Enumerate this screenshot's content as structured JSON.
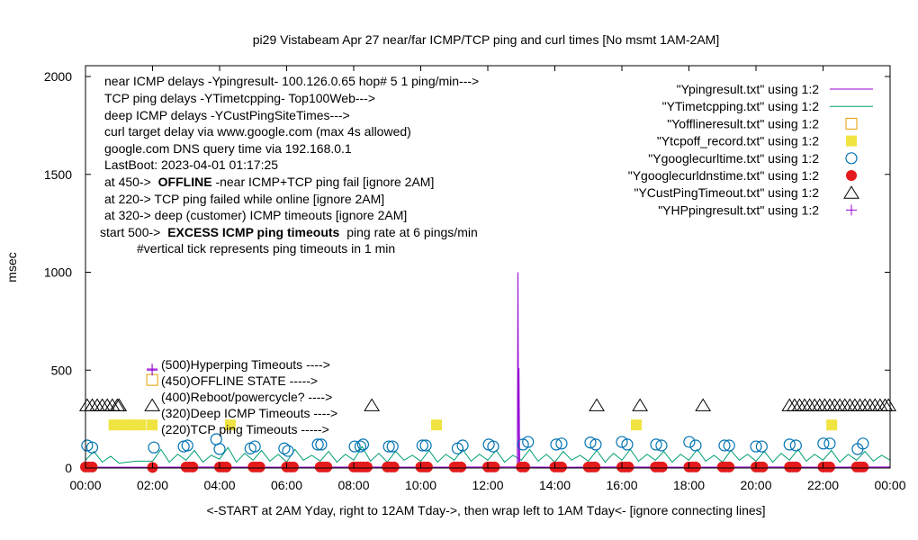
{
  "chart_data": {
    "type": "line",
    "title": "pi29 Vistabeam Apr 27  near/far ICMP/TCP ping and curl times [No msmt 1AM-2AM]",
    "xlabel": "<-START at 2AM Yday, right to 12AM Tday->, then wrap left to 1AM Tday<- [ignore connecting lines]",
    "ylabel": "msec",
    "xlim": [
      0,
      24
    ],
    "ylim": [
      0,
      2000
    ],
    "xticks": [
      "00:00",
      "02:00",
      "04:00",
      "06:00",
      "08:00",
      "10:00",
      "12:00",
      "14:00",
      "16:00",
      "18:00",
      "20:00",
      "22:00",
      "00:00"
    ],
    "yticks": [
      "0",
      "500",
      "1000",
      "1500",
      "2000"
    ],
    "annotations": [
      "near ICMP delays -Ypingresult- 100.126.0.65 hop# 5 1 ping/min--->",
      "TCP ping delays -YTimetcpping- Top100Web--->",
      "deep ICMP delays -YCustPingSiteTimes--->",
      "curl target delay via www.google.com (max 4s allowed)",
      "google.com DNS query time via 192.168.0.1",
      "LastBoot: 2023-04-01 01:17:25"
    ],
    "offline_note": {
      "pre": "at 450->",
      "bold": "OFFLINE",
      "post": "-near ICMP+TCP ping fail [ignore 2AM]"
    },
    "notes": [
      "at 220-> TCP ping failed while online [ignore 2AM]",
      "at 320-> deep (customer) ICMP timeouts [ignore 2AM]"
    ],
    "excess_note": {
      "pre": "start 500->",
      "bold": "EXCESS ICMP ping timeouts",
      "post": "ping rate at 6 pings/min"
    },
    "tick_note": "#vertical tick represents ping timeouts in 1 min",
    "key_labels": [
      "(500)Hyperping Timeouts ---->",
      "(450)OFFLINE STATE ----->",
      "(400)Reboot/powercycle? ---->",
      "(320)Deep ICMP Timeouts ---->",
      "(220)TCP ping Timeouts ----->"
    ],
    "legend_position": "top-right",
    "series": [
      {
        "name": "\"Ypingresult.txt\" using 1:2",
        "style": "line",
        "color": "#9400d3",
        "points": [
          [
            0,
            4
          ],
          [
            2,
            4
          ],
          [
            4,
            5
          ],
          [
            6,
            4
          ],
          [
            8,
            5
          ],
          [
            10,
            4
          ],
          [
            12,
            5
          ],
          [
            12.88,
            5
          ],
          [
            12.9,
            1000
          ],
          [
            12.92,
            5
          ],
          [
            12.93,
            510
          ],
          [
            12.95,
            5
          ],
          [
            14,
            4
          ],
          [
            16,
            5
          ],
          [
            18,
            4
          ],
          [
            20,
            5
          ],
          [
            22,
            4
          ],
          [
            24,
            5
          ]
        ]
      },
      {
        "name": "\"YTimetcpping.txt\" using 1:2",
        "style": "line",
        "color": "#009e73",
        "points": [
          [
            0,
            40
          ],
          [
            0.25,
            85
          ],
          [
            0.5,
            30
          ],
          [
            0.75,
            60
          ],
          [
            1,
            25
          ],
          [
            1.5,
            35
          ],
          [
            2,
            35
          ],
          [
            2.25,
            95
          ],
          [
            2.5,
            30
          ],
          [
            2.75,
            70
          ],
          [
            3,
            40
          ],
          [
            3.25,
            90
          ],
          [
            3.5,
            30
          ],
          [
            3.75,
            65
          ],
          [
            4,
            45
          ],
          [
            4.25,
            105
          ],
          [
            4.5,
            30
          ],
          [
            4.75,
            75
          ],
          [
            5,
            40
          ],
          [
            5.25,
            90
          ],
          [
            5.5,
            35
          ],
          [
            5.75,
            70
          ],
          [
            6,
            30
          ],
          [
            6.25,
            95
          ],
          [
            6.5,
            40
          ],
          [
            6.75,
            65
          ],
          [
            7,
            35
          ],
          [
            7.25,
            85
          ],
          [
            7.5,
            30
          ],
          [
            7.75,
            70
          ],
          [
            8,
            40
          ],
          [
            8.25,
            110
          ],
          [
            8.5,
            35
          ],
          [
            8.75,
            75
          ],
          [
            9,
            30
          ],
          [
            9.25,
            85
          ],
          [
            9.5,
            40
          ],
          [
            9.75,
            65
          ],
          [
            10,
            35
          ],
          [
            10.25,
            90
          ],
          [
            10.5,
            30
          ],
          [
            10.75,
            70
          ],
          [
            11,
            40
          ],
          [
            11.25,
            95
          ],
          [
            11.5,
            35
          ],
          [
            11.75,
            70
          ],
          [
            12,
            40
          ],
          [
            12.25,
            90
          ],
          [
            12.5,
            30
          ],
          [
            12.75,
            65
          ],
          [
            13,
            40
          ],
          [
            13.25,
            95
          ],
          [
            13.5,
            35
          ],
          [
            13.75,
            70
          ],
          [
            14,
            30
          ],
          [
            14.25,
            85
          ],
          [
            14.5,
            40
          ],
          [
            14.75,
            65
          ],
          [
            15,
            35
          ],
          [
            15.25,
            90
          ],
          [
            15.5,
            30
          ],
          [
            15.75,
            75
          ],
          [
            16,
            40
          ],
          [
            16.25,
            95
          ],
          [
            16.5,
            35
          ],
          [
            16.75,
            70
          ],
          [
            17,
            40
          ],
          [
            17.25,
            85
          ],
          [
            17.5,
            30
          ],
          [
            17.75,
            70
          ],
          [
            18,
            40
          ],
          [
            18.25,
            95
          ],
          [
            18.5,
            35
          ],
          [
            18.75,
            65
          ],
          [
            19,
            30
          ],
          [
            19.25,
            90
          ],
          [
            19.5,
            40
          ],
          [
            19.75,
            70
          ],
          [
            20,
            35
          ],
          [
            20.25,
            85
          ],
          [
            20.5,
            30
          ],
          [
            20.75,
            75
          ],
          [
            21,
            40
          ],
          [
            21.25,
            95
          ],
          [
            21.5,
            35
          ],
          [
            21.75,
            70
          ],
          [
            22,
            40
          ],
          [
            22.25,
            90
          ],
          [
            22.5,
            30
          ],
          [
            22.75,
            70
          ],
          [
            23,
            40
          ],
          [
            23.25,
            85
          ],
          [
            23.5,
            35
          ],
          [
            23.75,
            65
          ],
          [
            24,
            40
          ]
        ]
      },
      {
        "name": "\"Yofflineresult.txt\" using 1:2",
        "style": "square-open",
        "color": "#e69f00",
        "points": [
          [
            1.99,
            450
          ]
        ]
      },
      {
        "name": "\"Ytcpoff_record.txt\" using 1:2",
        "style": "square-filled",
        "color": "#f0e442",
        "points": [
          [
            0.85,
            220
          ],
          [
            1.05,
            220
          ],
          [
            1.25,
            220
          ],
          [
            1.45,
            220
          ],
          [
            1.65,
            220
          ],
          [
            1.99,
            220
          ],
          [
            4.32,
            220
          ],
          [
            10.47,
            220
          ],
          [
            16.43,
            220
          ],
          [
            22.26,
            220
          ]
        ]
      },
      {
        "name": "\"Ygooglecurltime.txt\" using 1:2",
        "style": "circle-open",
        "color": "#0072b2",
        "points": [
          [
            0.05,
            115
          ],
          [
            0.2,
            105
          ],
          [
            2.04,
            105
          ],
          [
            2.93,
            110
          ],
          [
            3.04,
            115
          ],
          [
            3.9,
            147
          ],
          [
            4.0,
            97
          ],
          [
            4.92,
            100
          ],
          [
            5.05,
            110
          ],
          [
            5.93,
            100
          ],
          [
            6.04,
            87
          ],
          [
            6.93,
            120
          ],
          [
            7.03,
            120
          ],
          [
            8.03,
            110
          ],
          [
            8.2,
            110
          ],
          [
            8.28,
            120
          ],
          [
            9.05,
            110
          ],
          [
            9.16,
            110
          ],
          [
            10.05,
            115
          ],
          [
            10.15,
            115
          ],
          [
            11.1,
            100
          ],
          [
            11.25,
            115
          ],
          [
            12.03,
            120
          ],
          [
            12.16,
            110
          ],
          [
            13.05,
            120
          ],
          [
            13.2,
            133
          ],
          [
            14.04,
            120
          ],
          [
            14.2,
            125
          ],
          [
            15.06,
            130
          ],
          [
            15.22,
            120
          ],
          [
            16.0,
            133
          ],
          [
            16.16,
            120
          ],
          [
            17.02,
            120
          ],
          [
            17.18,
            115
          ],
          [
            18.01,
            133
          ],
          [
            18.2,
            115
          ],
          [
            19.06,
            115
          ],
          [
            19.2,
            115
          ],
          [
            20.0,
            110
          ],
          [
            20.17,
            110
          ],
          [
            21.0,
            120
          ],
          [
            21.19,
            115
          ],
          [
            22.01,
            125
          ],
          [
            22.2,
            125
          ],
          [
            23.03,
            97
          ],
          [
            23.19,
            125
          ]
        ]
      },
      {
        "name": "\"Ygooglecurldnstime.txt\" using 1:2",
        "style": "circle-filled",
        "color": "#e41a1c",
        "points": [
          [
            0,
            5
          ],
          [
            0.1,
            5
          ],
          [
            0.2,
            5
          ],
          [
            2,
            3
          ],
          [
            3,
            5
          ],
          [
            3.1,
            5
          ],
          [
            3.2,
            5
          ],
          [
            4,
            5
          ],
          [
            4.1,
            5
          ],
          [
            4.2,
            5
          ],
          [
            5,
            5
          ],
          [
            5.1,
            5
          ],
          [
            5.2,
            5
          ],
          [
            6,
            5
          ],
          [
            6.1,
            5
          ],
          [
            6.2,
            5
          ],
          [
            7,
            5
          ],
          [
            7.1,
            5
          ],
          [
            7.2,
            5
          ],
          [
            8,
            5
          ],
          [
            8.1,
            5
          ],
          [
            8.2,
            5
          ],
          [
            8.3,
            5
          ],
          [
            8.4,
            5
          ],
          [
            9,
            5
          ],
          [
            9.1,
            5
          ],
          [
            9.2,
            5
          ],
          [
            10,
            5
          ],
          [
            10.1,
            5
          ],
          [
            10.2,
            5
          ],
          [
            11,
            5
          ],
          [
            11.1,
            5
          ],
          [
            11.2,
            5
          ],
          [
            12,
            5
          ],
          [
            12.1,
            5
          ],
          [
            12.2,
            5
          ],
          [
            13,
            5
          ],
          [
            13.1,
            5
          ],
          [
            14,
            5
          ],
          [
            14.1,
            5
          ],
          [
            14.2,
            5
          ],
          [
            15,
            5
          ],
          [
            15.1,
            5
          ],
          [
            15.2,
            5
          ],
          [
            16,
            5
          ],
          [
            16.1,
            5
          ],
          [
            16.2,
            5
          ],
          [
            17,
            5
          ],
          [
            17.1,
            5
          ],
          [
            17.2,
            5
          ],
          [
            18,
            5
          ],
          [
            18.1,
            5
          ],
          [
            18.2,
            5
          ],
          [
            19,
            5
          ],
          [
            19.1,
            5
          ],
          [
            19.2,
            5
          ],
          [
            20,
            5
          ],
          [
            20.1,
            5
          ],
          [
            20.2,
            5
          ],
          [
            21,
            5
          ],
          [
            21.1,
            5
          ],
          [
            21.2,
            5
          ],
          [
            22,
            5
          ],
          [
            22.1,
            5
          ],
          [
            22.2,
            5
          ],
          [
            23,
            5
          ],
          [
            23.1,
            5
          ],
          [
            23.2,
            5
          ]
        ]
      },
      {
        "name": "\"YCustPingTimeout.txt\" using 1:2",
        "style": "triangle-open",
        "color": "#000000",
        "points": [
          [
            0.05,
            320
          ],
          [
            0.2,
            320
          ],
          [
            0.35,
            320
          ],
          [
            0.5,
            320
          ],
          [
            0.65,
            320
          ],
          [
            0.8,
            320
          ],
          [
            0.95,
            320
          ],
          [
            1.0,
            320
          ],
          [
            1.99,
            320
          ],
          [
            8.54,
            320
          ],
          [
            15.25,
            320
          ],
          [
            16.54,
            320
          ],
          [
            18.42,
            320
          ],
          [
            21.0,
            320
          ],
          [
            21.15,
            320
          ],
          [
            21.3,
            320
          ],
          [
            21.45,
            320
          ],
          [
            21.6,
            320
          ],
          [
            21.75,
            320
          ],
          [
            21.9,
            320
          ],
          [
            22.05,
            320
          ],
          [
            22.2,
            320
          ],
          [
            22.35,
            320
          ],
          [
            22.5,
            320
          ],
          [
            22.65,
            320
          ],
          [
            22.8,
            320
          ],
          [
            22.95,
            320
          ],
          [
            23.1,
            320
          ],
          [
            23.25,
            320
          ],
          [
            23.4,
            320
          ],
          [
            23.55,
            320
          ],
          [
            23.7,
            320
          ],
          [
            23.85,
            320
          ],
          [
            23.95,
            320
          ]
        ]
      },
      {
        "name": "\"YHPpingresult.txt\" using 1:2",
        "style": "plus",
        "color": "#9400d3",
        "points": [
          [
            1.99,
            500
          ]
        ]
      }
    ]
  }
}
